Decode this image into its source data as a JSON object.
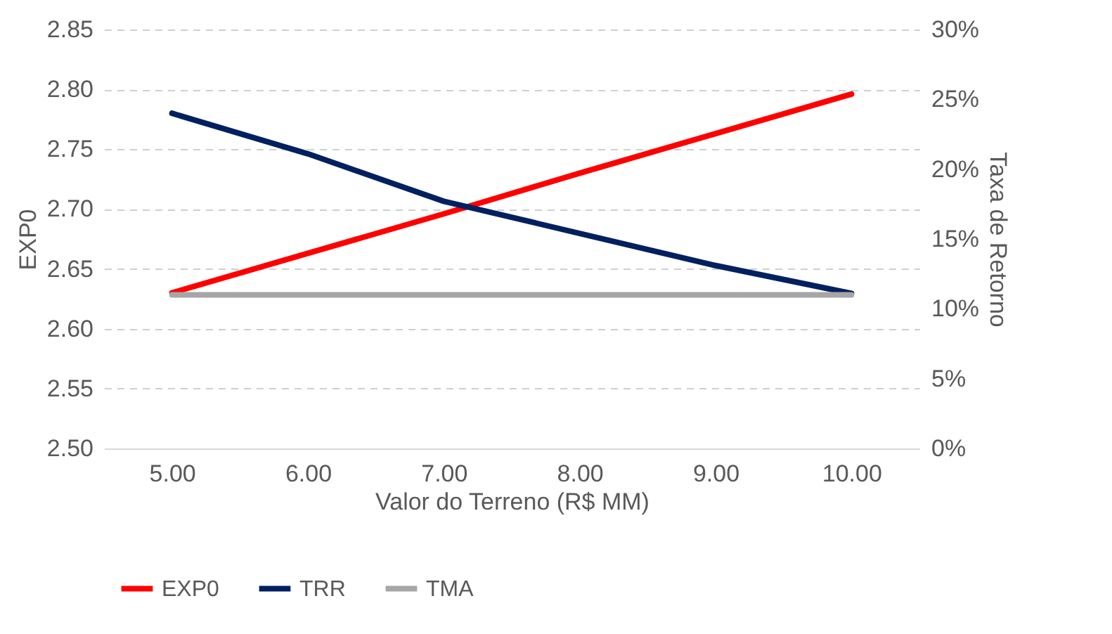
{
  "chart_data": {
    "type": "line",
    "xlabel": "Valor do Terreno (R$ MM)",
    "ylabel": "EXP0",
    "y2label": "Taxa de Retorno",
    "categories": [
      "5.00",
      "6.00",
      "7.00",
      "8.00",
      "9.00",
      "10.00"
    ],
    "series": [
      {
        "name": "EXP0",
        "color": "#ff0000",
        "values": [
          2.63,
          2.663,
          2.696,
          2.73,
          2.763,
          2.796
        ]
      },
      {
        "name": "TRR",
        "color": "#002060",
        "axis": "y2",
        "values": [
          24,
          21.1,
          17.7,
          15.4,
          13.1,
          11.1
        ]
      },
      {
        "name": "TMA",
        "color": "#a6a6a6",
        "axis": "y2",
        "values": [
          11,
          11,
          11,
          11,
          11,
          11
        ]
      }
    ],
    "ylim": [
      2.5,
      2.85
    ],
    "yticks": [
      {
        "value": 2.5,
        "label": "2.50"
      },
      {
        "value": 2.55,
        "label": "2.55"
      },
      {
        "value": 2.6,
        "label": "2.60"
      },
      {
        "value": 2.65,
        "label": "2.65"
      },
      {
        "value": 2.7,
        "label": "2.70"
      },
      {
        "value": 2.75,
        "label": "2.75"
      },
      {
        "value": 2.8,
        "label": "2.80"
      },
      {
        "value": 2.85,
        "label": "2.85"
      }
    ],
    "y2lim": [
      0,
      30
    ],
    "y2ticks": [
      {
        "value": 0,
        "label": "0%"
      },
      {
        "value": 5,
        "label": "5%"
      },
      {
        "value": 10,
        "label": "10%"
      },
      {
        "value": 15,
        "label": "15%"
      },
      {
        "value": 20,
        "label": "20%"
      },
      {
        "value": 25,
        "label": "25%"
      },
      {
        "value": 30,
        "label": "30%"
      }
    ],
    "grid": "y",
    "legend": "bottom",
    "line_style": "solid",
    "marker": "none"
  }
}
